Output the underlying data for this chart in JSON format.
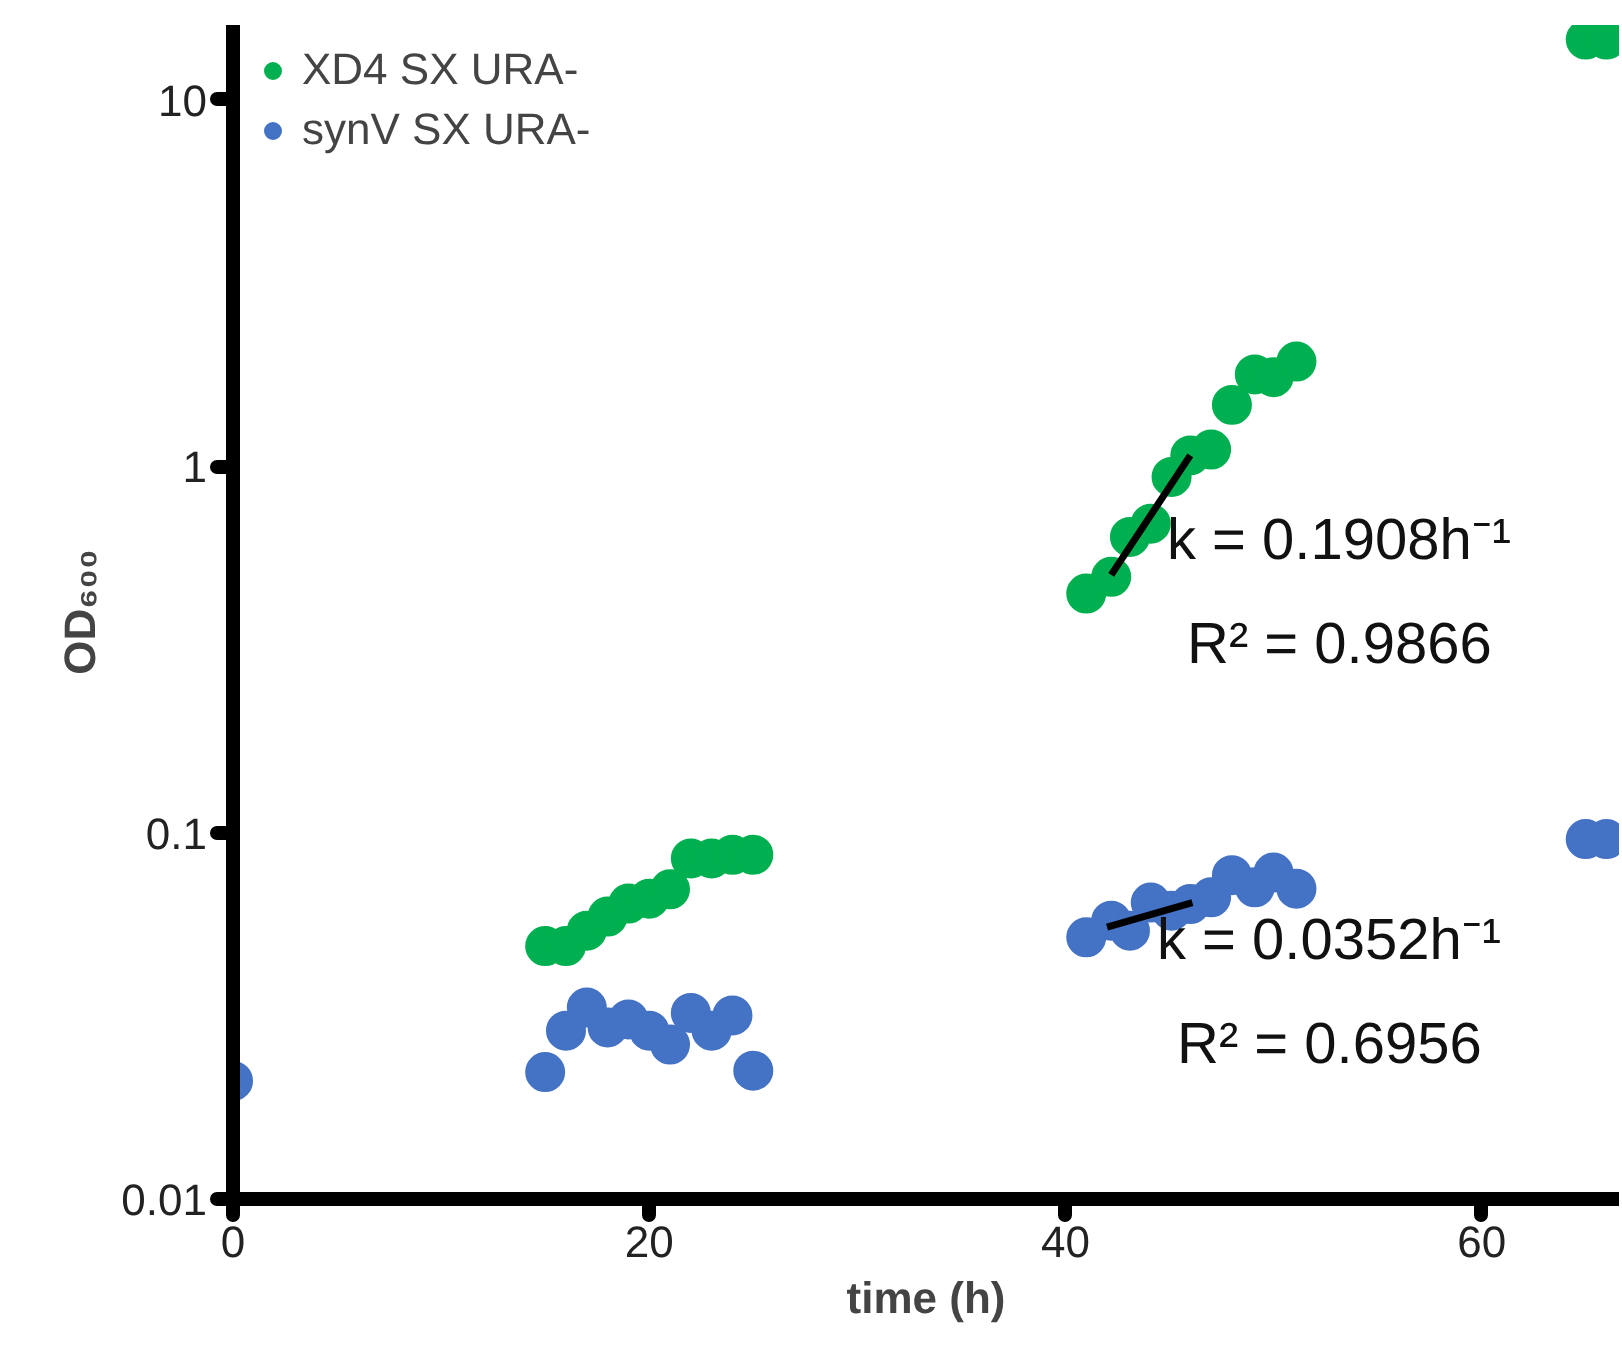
{
  "chart_data": {
    "type": "scatter",
    "xlabel": "time (h)",
    "ylabel": "OD₆₀₀",
    "xlim": [
      0,
      66.6
    ],
    "xticks": [
      0,
      20,
      40,
      60
    ],
    "ylim": [
      0.01,
      16
    ],
    "yticks": [
      0.01,
      0.1,
      1,
      10
    ],
    "log": "y",
    "grid": false,
    "legend": "top left",
    "marker": "circle",
    "series": [
      {
        "name": "XD4 SX URA-",
        "color": "#00b050",
        "x": [
          15,
          16,
          17,
          18,
          19,
          20,
          21,
          22,
          23,
          24,
          25,
          41,
          42.2,
          43.1,
          44.1,
          45.1,
          46,
          47,
          48,
          49.1,
          50,
          51.1,
          65,
          66
        ],
        "values": [
          0.049,
          0.049,
          0.054,
          0.059,
          0.064,
          0.066,
          0.07,
          0.085,
          0.085,
          0.087,
          0.087,
          0.449,
          0.499,
          0.641,
          0.697,
          0.935,
          1.07,
          1.11,
          1.47,
          1.78,
          1.75,
          1.93,
          14.6,
          14.6
        ]
      },
      {
        "name": "synV SX URA-",
        "color": "#4472c4",
        "x": [
          0,
          15,
          16,
          17,
          18,
          19,
          20,
          21,
          22,
          23,
          24,
          25,
          41,
          42.2,
          43.1,
          44.1,
          45.1,
          46,
          47,
          48,
          49.1,
          50,
          51.1,
          65,
          66
        ],
        "values": [
          0.021,
          0.0222,
          0.0288,
          0.0333,
          0.0294,
          0.0309,
          0.0288,
          0.0264,
          0.0322,
          0.0288,
          0.0317,
          0.0224,
          0.0518,
          0.0575,
          0.054,
          0.0644,
          0.0612,
          0.0638,
          0.0666,
          0.0765,
          0.0709,
          0.0778,
          0.0703,
          0.096,
          0.096
        ]
      },
      {
        "type": "line",
        "marker": "none",
        "color": "#000000",
        "x": [
          42.2,
          46
        ],
        "values": [
          0.505,
          1.07
        ]
      },
      {
        "type": "line",
        "marker": "none",
        "color": "#000000",
        "x": [
          42,
          46.1
        ],
        "values": [
          0.0552,
          0.0644
        ]
      }
    ],
    "annotations": [
      "k = 0.1908h⁻¹",
      "R² = 0.9866",
      "k = 0.0352h⁻¹",
      "R² = 0.6956"
    ]
  }
}
